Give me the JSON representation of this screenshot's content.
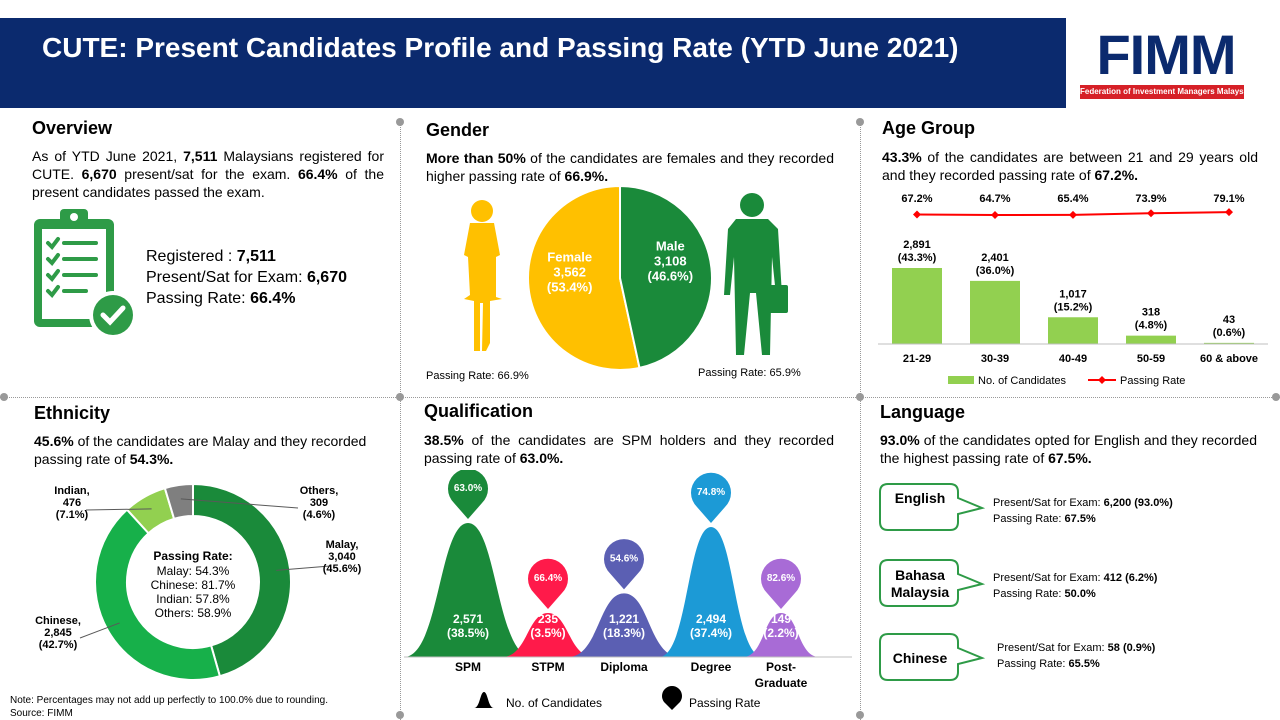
{
  "header": {
    "title": "CUTE: Present Candidates Profile and Passing Rate (YTD June 2021)"
  },
  "logo": {
    "text": "FIMM",
    "subtitle": "Federation of Investment Managers Malaysia"
  },
  "colors": {
    "navy": "#0b2a6e",
    "green": "#2e9b47",
    "dark_green": "#1a8a3a",
    "yellow": "#ffc000",
    "light_green": "#92d050",
    "red": "#ff0000"
  },
  "overview": {
    "title": "Overview",
    "p1": "As of YTD June 2021, ",
    "b1": "7,511",
    "p2": " Malaysians registered for CUTE. ",
    "b2": "6,670",
    "p3": " present/sat for the exam. ",
    "b3": "66.4%",
    "p4": " of the present candidates passed the exam.",
    "icon": "checklist-icon",
    "registered_label": "Registered  : ",
    "registered_value": "7,511",
    "present_label": "Present/Sat  for Exam:  ",
    "present_value": "6,670",
    "passing_label": "Passing Rate:  ",
    "passing_value": "66.4%"
  },
  "gender": {
    "title": "Gender",
    "b1": "More than 50%",
    "p1": " of the candidates are females and they recorded higher passing rate of ",
    "b2": "66.9%.",
    "female_pass": "Passing Rate: 66.9%",
    "male_pass": "Passing Rate: 65.9%"
  },
  "age": {
    "title": "Age Group",
    "b1": "43.3%",
    "p1": " of the candidates are between 21 and 29 years old and they recorded passing rate of ",
    "b2": "67.2%."
  },
  "ethnicity": {
    "title": "Ethnicity",
    "b1": "45.6%",
    "p1": " of the candidates are Malay and they recorded passing rate of  ",
    "b2": "54.3%.",
    "center_title": "Passing Rate:",
    "center_lines": [
      "Malay: 54.3%",
      "Chinese: 81.7%",
      "Indian: 57.8%",
      "Others: 58.9%"
    ]
  },
  "qualification": {
    "title": "Qualification",
    "b1": "38.5%",
    "p1": " of the candidates are SPM holders and they recorded passing rate of ",
    "b2": "63.0%.",
    "legend_count": "No. of Candidates",
    "legend_rate": "Passing Rate"
  },
  "language": {
    "title": "Language",
    "b1": "93.0%",
    "p1": " of the candidates opted for English and they recorded the highest passing rate of ",
    "b2": "67.5%.",
    "items": [
      {
        "name": "English",
        "present_label": "Present/Sat for Exam: ",
        "present": "6,200 (93.0%)",
        "pass_label": "Passing Rate: ",
        "pass": "67.5%"
      },
      {
        "name": "Bahasa Malaysia",
        "present_label": "Present/Sat for Exam: ",
        "present": "412 (6.2%)",
        "pass_label": "Passing Rate: ",
        "pass": "50.0%"
      },
      {
        "name": "Chinese",
        "present_label": "Present/Sat for Exam: ",
        "present": "58 (0.9%)",
        "pass_label": "Passing Rate: ",
        "pass": "65.5%"
      }
    ]
  },
  "footer": {
    "note": "Note: Percentages may not add up perfectly to 100.0% due to rounding.",
    "source": "Source: FIMM"
  },
  "chart_data": [
    {
      "type": "pie",
      "categories": [
        "Female",
        "Male"
      ],
      "values": [
        3562,
        3108
      ],
      "labels": [
        "3,562\n(53.4%)",
        "3,108\n(46.6%)"
      ],
      "percent": [
        53.4,
        46.6
      ],
      "colors": [
        "#ffc000",
        "#1a8a3a"
      ],
      "passing_rate": [
        66.9,
        65.9
      ]
    },
    {
      "type": "bar",
      "categories": [
        "21-29",
        "30-39",
        "40-49",
        "50-59",
        "60 & above"
      ],
      "series": [
        {
          "name": "No. of Candidates",
          "values": [
            2891,
            2401,
            1017,
            318,
            43
          ],
          "labels": [
            "2,891\n(43.3%)",
            "2,401\n(36.0%)",
            "1,017\n(15.2%)",
            "318\n(4.8%)",
            "43\n(0.6%)"
          ],
          "color": "#92d050"
        },
        {
          "name": "Passing Rate",
          "type": "line",
          "values": [
            67.2,
            64.7,
            65.4,
            73.9,
            79.1
          ],
          "labels": [
            "67.2%",
            "64.7%",
            "65.4%",
            "73.9%",
            "79.1%"
          ],
          "color": "#ff0000"
        }
      ],
      "legend": "bottom"
    },
    {
      "type": "pie",
      "style": "donut",
      "categories": [
        "Malay",
        "Chinese",
        "Indian",
        "Others"
      ],
      "values": [
        3040,
        2845,
        476,
        309
      ],
      "percent": [
        45.6,
        42.7,
        7.1,
        4.6
      ],
      "labels": [
        "Malay,\n3,040\n(45.6%)",
        "Chinese,\n2,845\n(42.7%)",
        "Indian,\n476\n(7.1%)",
        "Others,\n309\n(4.6%)"
      ],
      "colors": [
        "#1a8a3a",
        "#17b04a",
        "#92d050",
        "#7f7f7f"
      ],
      "passing_rate": [
        54.3,
        81.7,
        57.8,
        58.9
      ]
    },
    {
      "type": "area",
      "categories": [
        "SPM",
        "STPM",
        "Diploma",
        "Degree",
        "Post-\nGraduate"
      ],
      "series": [
        {
          "name": "No. of Candidates",
          "values": [
            2571,
            235,
            1221,
            2494,
            149
          ],
          "labels": [
            "2,571\n(38.5%)",
            "235\n(3.5%)",
            "1,221\n(18.3%)",
            "2,494\n(37.4%)",
            "149\n(2.2%)"
          ]
        },
        {
          "name": "Passing Rate",
          "values": [
            63.0,
            66.4,
            54.6,
            74.8,
            82.6
          ],
          "labels": [
            "63.0%",
            "66.4%",
            "54.6%",
            "74.8%",
            "82.6%"
          ]
        }
      ],
      "colors": [
        "#1a8a3a",
        "#ff1a4a",
        "#5b5fb3",
        "#1c9ad6",
        "#a86bd6"
      ],
      "legend": "bottom"
    }
  ]
}
